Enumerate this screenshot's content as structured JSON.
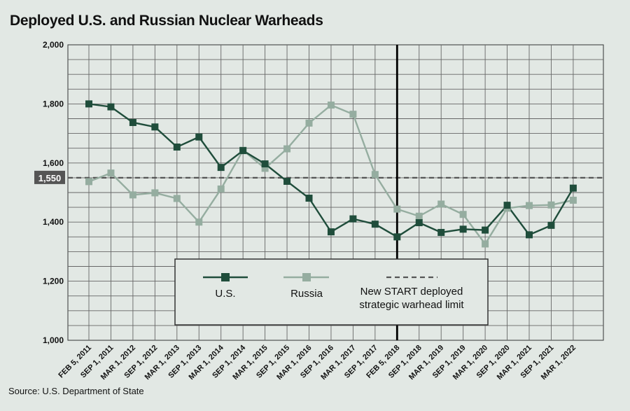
{
  "title": "Deployed U.S. and Russian Nuclear Warheads",
  "source": "Source: U.S. Department of State",
  "colors": {
    "us": "#1f4d3b",
    "russia": "#95ada0",
    "limit": "#555555",
    "background": "#e2e8e4"
  },
  "chart_data": {
    "type": "line",
    "title": "Deployed U.S. and Russian Nuclear Warheads",
    "x": [
      "FEB 5, 2011",
      "SEP 1, 2011",
      "MAR 1, 2012",
      "SEP 1, 2012",
      "MAR 1, 2013",
      "SEP 1, 2013",
      "MAR 1, 2014",
      "SEP 1, 2014",
      "MAR 1, 2015",
      "SEP 1, 2015",
      "MAR 1, 2016",
      "SEP 1, 2016",
      "MAR 1, 2017",
      "SEP 1, 2017",
      "FEB 5, 2018",
      "SEP 1, 2018",
      "MAR 1, 2019",
      "SEP 1, 2019",
      "MAR 1, 2020",
      "SEP 1, 2020",
      "MAR 1, 2021",
      "SEP 1, 2021",
      "MAR 1, 2022"
    ],
    "series": [
      {
        "name": "U.S.",
        "values": [
          1800,
          1790,
          1737,
          1722,
          1654,
          1688,
          1585,
          1642,
          1597,
          1538,
          1481,
          1367,
          1411,
          1393,
          1350,
          1398,
          1365,
          1376,
          1373,
          1457,
          1357,
          1389,
          1515
        ]
      },
      {
        "name": "Russia",
        "values": [
          1537,
          1566,
          1492,
          1499,
          1480,
          1400,
          1512,
          1643,
          1582,
          1648,
          1735,
          1796,
          1765,
          1561,
          1444,
          1420,
          1461,
          1426,
          1326,
          1447,
          1456,
          1458,
          1474
        ]
      }
    ],
    "reference_line": {
      "value": 1550,
      "label": "1,550",
      "name": "New START deployed strategic warhead limit"
    },
    "event_line": {
      "x": "FEB 5, 2018"
    },
    "ylim": [
      1000,
      2000
    ],
    "yticks": [
      {
        "value": 1000,
        "label": "1,000"
      },
      {
        "value": 1200,
        "label": "1,200"
      },
      {
        "value": 1400,
        "label": "1,400"
      },
      {
        "value": 1600,
        "label": "1,600"
      },
      {
        "value": 1800,
        "label": "1,800"
      },
      {
        "value": 2000,
        "label": "2,000"
      }
    ],
    "grid": true,
    "legend": {
      "placement": "bottom-center",
      "items": [
        {
          "label": "U.S."
        },
        {
          "label": "Russia"
        },
        {
          "label_line1": "New START deployed",
          "label_line2": "strategic warhead limit"
        }
      ]
    }
  }
}
